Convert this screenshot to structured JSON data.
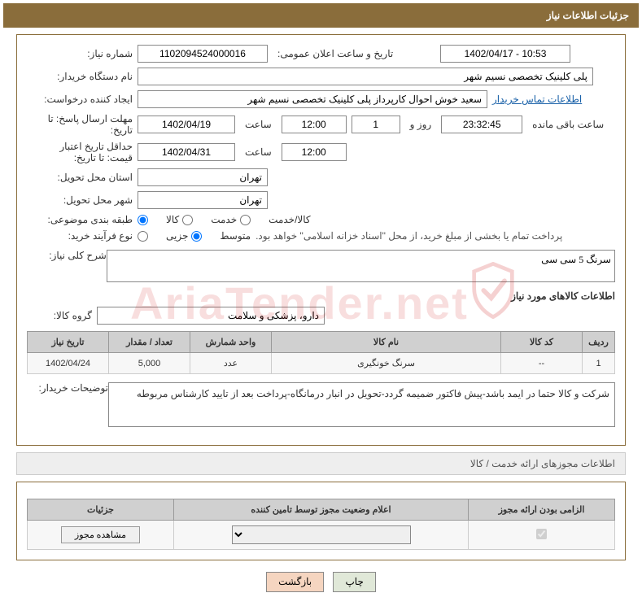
{
  "header": {
    "title": "جزئیات اطلاعات نیاز"
  },
  "need": {
    "label": "شماره نیاز:",
    "number": "1102094524000016",
    "dateLabel": "تاریخ و ساعت اعلان عمومی:",
    "date": "1402/04/17 - 10:53"
  },
  "buyer": {
    "label": "نام دستگاه خریدار:",
    "value": "پلی کلینیک تخصصی نسیم شهر"
  },
  "requester": {
    "label": "ایجاد کننده درخواست:",
    "value": "سعید خوش احوال کارپرداز پلی کلینیک تخصصی نسیم شهر",
    "contactLink": "اطلاعات تماس خریدار"
  },
  "deadline": {
    "label": "مهلت ارسال پاسخ: تا تاریخ:",
    "date": "1402/04/19",
    "timeLabel": "ساعت",
    "time": "12:00",
    "daysLabel": "روز و",
    "days": "1",
    "countdown": "23:32:45",
    "remainLabel": "ساعت باقی مانده"
  },
  "validity": {
    "label": "حداقل تاریخ اعتبار قیمت: تا تاریخ:",
    "date": "1402/04/31",
    "timeLabel": "ساعت",
    "time": "12:00"
  },
  "province": {
    "label": "استان محل تحویل:",
    "value": "تهران"
  },
  "city": {
    "label": "شهر محل تحویل:",
    "value": "تهران"
  },
  "category": {
    "label": "طبقه بندی موضوعی:",
    "options": [
      "کالا",
      "خدمت",
      "کالا/خدمت"
    ],
    "selected": 0
  },
  "purchase": {
    "label": "نوع فرآیند خرید:",
    "options": [
      "جزیی",
      "متوسط"
    ],
    "selected": 1,
    "note": "پرداخت تمام یا بخشی از مبلغ خرید، از محل \"اسناد خزانه اسلامی\" خواهد بود."
  },
  "generalDesc": {
    "label": "شرح کلی نیاز:",
    "value": "سرنگ 5 سی سی"
  },
  "goodsSection": {
    "title": "اطلاعات کالاهای مورد نیاز"
  },
  "group": {
    "label": "گروه کالا:",
    "value": "دارو، پزشکی و سلامت"
  },
  "table": {
    "headers": [
      "ردیف",
      "کد کالا",
      "نام کالا",
      "واحد شمارش",
      "تعداد / مقدار",
      "تاریخ نیاز"
    ],
    "rows": [
      {
        "idx": "1",
        "code": "--",
        "name": "سرنگ خونگیری",
        "unit": "عدد",
        "qty": "5,000",
        "date": "1402/04/24"
      }
    ]
  },
  "buyerNote": {
    "label": "توضیحات خریدار:",
    "value": "شرکت و کالا حتما در ایمد باشد-پیش فاکتور ضمیمه گردد-تحویل در انبار درمانگاه-پرداخت بعد از تایید کارشناس مربوطه"
  },
  "licenseSection": {
    "title": "اطلاعات مجوزهای ارائه خدمت / کالا"
  },
  "licenseTable": {
    "headers": [
      "الزامی بودن ارائه مجوز",
      "اعلام وضعیت مجوز توسط تامین کننده",
      "جزئیات"
    ],
    "viewBtn": "مشاهده مجوز"
  },
  "buttons": {
    "print": "چاپ",
    "back": "بازگشت"
  },
  "watermark": "AriaTender.net"
}
